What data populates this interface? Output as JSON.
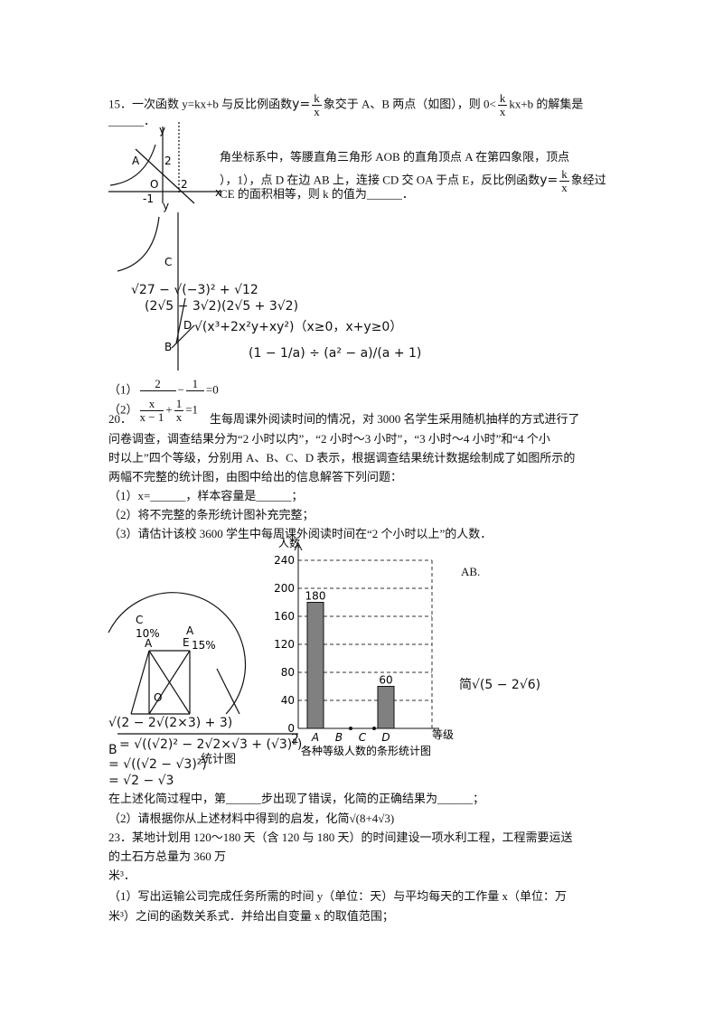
{
  "q15": {
    "line1a": "15．一次函数 y=kx+b 与反比例函数",
    "f1": {
      "lhs": "y=",
      "num": "k",
      "den": "x"
    },
    "line1b": "象交于 A、B 两点（如图），则 0<",
    "f2": {
      "num": "k",
      "den": "x"
    },
    "line1c": "kx+b 的解集是",
    "line2": "______．"
  },
  "fig1": [
    "y",
    "A",
    "2",
    "O",
    "2",
    "-1",
    "x"
  ],
  "q_overlap": {
    "line1": "角坐标系中，等腰直角三角形 AOB 的直角顶点 A 在第四象限，顶点",
    "line2": "），1），点 D 在边 AB 上，连接 CD 交 OA 于点 E，反比例函数",
    "f": {
      "lhs": "y=",
      "num": "k",
      "den": "x"
    },
    "line2b": "象经过",
    "line3": "CE 的面积相等，则 k 的值为______．"
  },
  "fig2": [
    "y",
    "C",
    "D",
    "B"
  ],
  "calc": [
    "√27 − √(−3)² + √12",
    "(2√5 − 3√2)(2√5 + 3√2)",
    "√(x³+2x²y+xy²)（x≥0，x+y≥0）",
    "(1 − 1/a) ÷ (a² − a)/(a + 1)"
  ],
  "eq1": {
    "label": "（1）",
    "n1": "2",
    "op": "−",
    "n2": "1",
    "rhs": "=0"
  },
  "eq2": {
    "label": "（2）",
    "n1": "x",
    "d1": "x − 1",
    "op": "+",
    "n2": "1",
    "d2": "x",
    "rhs": "=1"
  },
  "q20": {
    "num": "20．",
    "lines": [
      "生每周课外阅读时间的情况，对 3000 名学生采用随机抽样的方式进行了",
      "问卷调查，调查结果分为“2 小时以内”，“2 小时～3 小时”，“3 小时～4 小时”和“4 个小",
      "时以上”四个等级，分别用 A、B、C、D 表示，根据调查结果统计数据绘制成了如图所示的",
      "两幅不完整的统计图，由图中给出的信息解答下列问题：",
      "（1）x=______，样本容量是______；",
      "（2）将不完整的条形统计图补充完整；",
      "（3）请估计该校 3600 学生中每周课外阅读时间在“2 个小时以上”的人数．"
    ]
  },
  "pie": [
    "C",
    "10%",
    "A",
    "E",
    "15%",
    "O",
    "A"
  ],
  "side": [
    "AB.",
    "简√(5 − 2√6)"
  ],
  "simp": [
    "√(2 − 2√(2×3) + 3)",
    "B",
    "= √((√2)² − 2√2×√3 + (√3)²)",
    "2",
    "统计图",
    "= √((√2 − √3)²)",
    "= √2 − √3"
  ],
  "q22": [
    "在上述化简过程中，第______步出现了错误，化简的正确结果为______；",
    "（2）请根据你从上述材料中得到的启发，化简√(8+4√3)"
  ],
  "q23": [
    "23．某地计划用 120～180 天（含 120 与 180 天）的时间建设一项水利工程，工程需要运送",
    "的土石方总量为 360 万",
    "米³．",
    "（1）写出运输公司完成任务所需的时间 y（单位：天）与平均每天的工作量 x（单位：万",
    "米³）之间的函数关系式．并给出自变量 x 的取值范围；"
  ],
  "chart_data": {
    "type": "bar",
    "title": "各种等级人数的条形统计图",
    "y_label": "人数",
    "x_label": "等级",
    "categories": [
      "A",
      "B",
      "C",
      "D"
    ],
    "values": [
      180,
      null,
      null,
      60
    ],
    "color": "#808080",
    "ylim": [
      0,
      240
    ],
    "yticks": [
      0,
      40,
      80,
      120,
      160,
      200,
      240
    ],
    "grid": true
  }
}
